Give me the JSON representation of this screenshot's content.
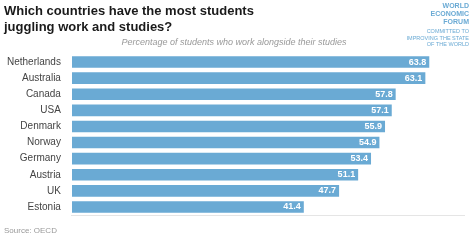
{
  "chart_data": {
    "type": "bar",
    "orientation": "horizontal",
    "title": [
      "Which countries have the most students",
      "juggling work and studies?"
    ],
    "subtitle": "Percentage of students who work alongside their studies",
    "annotations": [
      "Source: OECD",
      "WORLD\nECONOMIC\nFORUM",
      "COMMITTED TO\nIMPROVING THE STATE\nOF THE WORLD"
    ],
    "categories": [
      "Netherlands",
      "Australia",
      "Canada",
      "USA",
      "Denmark",
      "Norway",
      "Germany",
      "Austria",
      "UK",
      "Estonia"
    ],
    "values": [
      63.8,
      63.1,
      57.8,
      57.1,
      55.9,
      54.9,
      53.4,
      51.1,
      47.7,
      41.4
    ],
    "color": "#6aaad4",
    "xlim": [
      0,
      70
    ],
    "grid": false,
    "data_labels": true,
    "tick_labels": "y"
  }
}
